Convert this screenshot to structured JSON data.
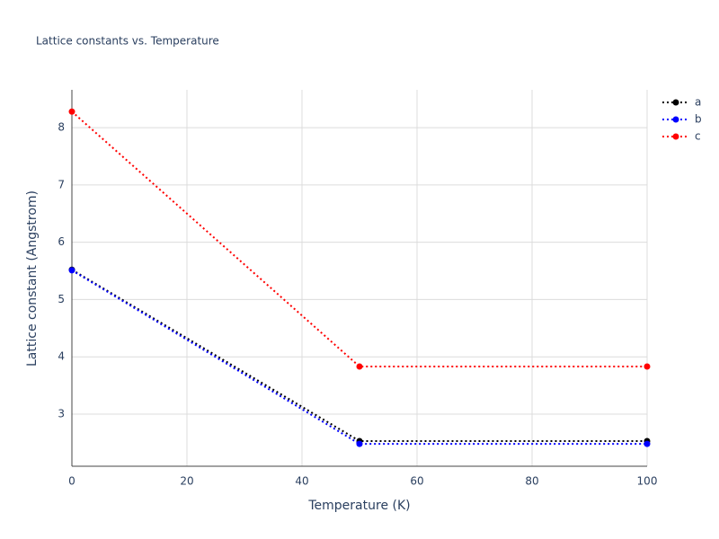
{
  "chart_data": {
    "type": "line",
    "title": "Lattice constants vs. Temperature",
    "x_label": "Temperature (K)",
    "y_label": "Lattice constant (Angstrom)",
    "x": [
      0,
      50,
      100
    ],
    "series": [
      {
        "name": "a",
        "color": "#000000",
        "values": [
          5.52,
          2.53,
          2.53
        ]
      },
      {
        "name": "b",
        "color": "#0000ff",
        "values": [
          5.51,
          2.48,
          2.48
        ]
      },
      {
        "name": "c",
        "color": "#ff0000",
        "values": [
          8.28,
          3.83,
          3.83
        ]
      }
    ],
    "xlim": [
      0,
      100
    ],
    "xticks": [
      0,
      20,
      40,
      60,
      80,
      100
    ],
    "ylim": [
      2.09,
      8.66
    ],
    "yticks": [
      3,
      4,
      5,
      6,
      7,
      8
    ],
    "grid": true,
    "legend": "top-right",
    "line_style": "dotted",
    "markers": true
  }
}
